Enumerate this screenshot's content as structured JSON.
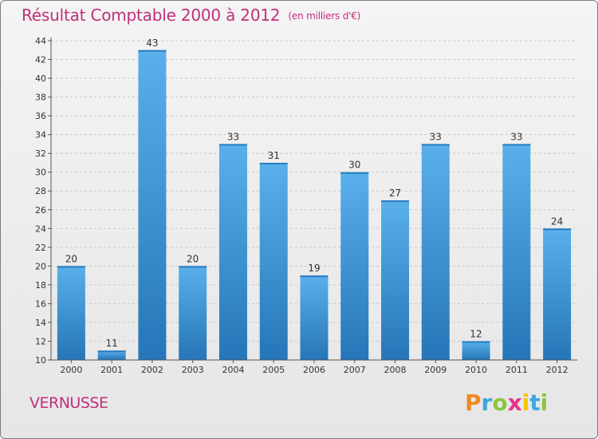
{
  "title": "Résultat Comptable 2000 à 2012",
  "subtitle": "(en milliers d'€)",
  "commune": "VERNUSSE",
  "logo": {
    "letters": [
      "P",
      "r",
      "o",
      "x",
      "i",
      "t",
      "i"
    ],
    "colors": [
      "#f08a24",
      "#3aa7e0",
      "#8cc63f",
      "#e8318a",
      "#f5c400",
      "#3aa7e0",
      "#8cc63f"
    ]
  },
  "colors": {
    "bar_light": "#5ab0ea",
    "bar_dark": "#2576b8",
    "title": "#c0307a"
  },
  "chart_data": {
    "type": "bar",
    "title": "Résultat Comptable 2000 à 2012",
    "subtitle": "(en milliers d'€)",
    "categories": [
      "2000",
      "2001",
      "2002",
      "2003",
      "2004",
      "2005",
      "2006",
      "2007",
      "2008",
      "2009",
      "2010",
      "2011",
      "2012"
    ],
    "values": [
      20,
      11,
      43,
      20,
      33,
      31,
      19,
      30,
      27,
      33,
      12,
      33,
      24
    ],
    "value_labels": [
      "20",
      "11",
      "43",
      "20",
      "33",
      "31",
      "19",
      "30",
      "27",
      "33",
      "12",
      "33",
      "24"
    ],
    "yticks": [
      "10",
      "12",
      "14",
      "16",
      "18",
      "20",
      "22",
      "24",
      "26",
      "28",
      "30",
      "32",
      "34",
      "36",
      "38",
      "40",
      "42",
      "44"
    ],
    "ylim": [
      10,
      44
    ],
    "xlabel": "",
    "ylabel": "",
    "grid": true
  }
}
